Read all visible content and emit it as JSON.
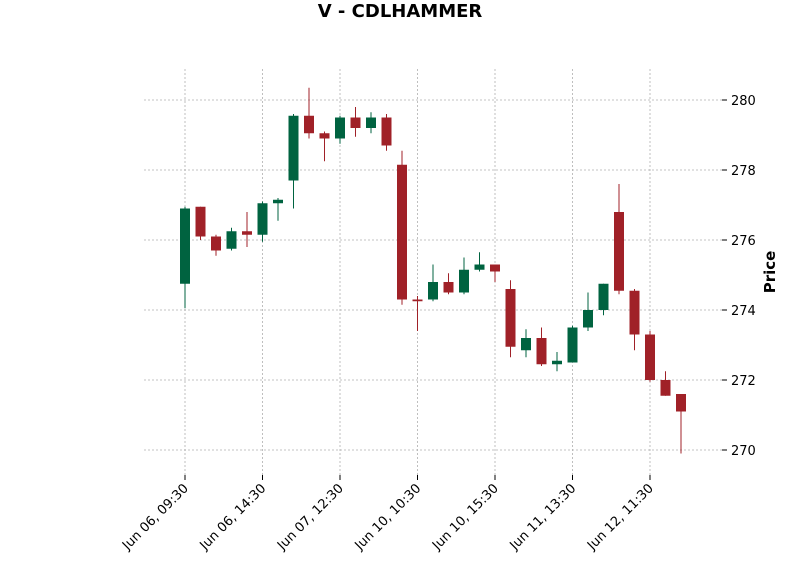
{
  "chart_data": {
    "type": "candlestick",
    "title": "V - CDLHAMMER",
    "ylabel": "Price",
    "xlabel": "",
    "ylim": [
      269.5,
      280.8
    ],
    "yticks": [
      270,
      272,
      274,
      276,
      278,
      280
    ],
    "grid": true,
    "colors": {
      "up": "#006340",
      "down": "#a02128",
      "grid": "#b0b0b0"
    },
    "xtick_labels": [
      {
        "index": 0,
        "label": "Jun 06, 09:30"
      },
      {
        "index": 5,
        "label": "Jun 06, 14:30"
      },
      {
        "index": 10,
        "label": "Jun 07, 12:30"
      },
      {
        "index": 15,
        "label": "Jun 10, 10:30"
      },
      {
        "index": 20,
        "label": "Jun 10, 15:30"
      },
      {
        "index": 25,
        "label": "Jun 11, 13:30"
      },
      {
        "index": 30,
        "label": "Jun 12, 11:30"
      }
    ],
    "candles": [
      {
        "o": 274.75,
        "h": 276.95,
        "l": 274.05,
        "c": 276.9
      },
      {
        "o": 276.95,
        "h": 276.95,
        "l": 276.0,
        "c": 276.1
      },
      {
        "o": 276.1,
        "h": 276.15,
        "l": 275.55,
        "c": 275.7
      },
      {
        "o": 275.75,
        "h": 276.35,
        "l": 275.7,
        "c": 276.25
      },
      {
        "o": 276.25,
        "h": 276.8,
        "l": 275.8,
        "c": 276.15
      },
      {
        "o": 276.15,
        "h": 277.1,
        "l": 275.95,
        "c": 277.05
      },
      {
        "o": 277.05,
        "h": 277.2,
        "l": 276.55,
        "c": 277.15
      },
      {
        "o": 277.7,
        "h": 279.6,
        "l": 276.9,
        "c": 279.55
      },
      {
        "o": 279.55,
        "h": 280.35,
        "l": 278.9,
        "c": 279.05
      },
      {
        "o": 279.05,
        "h": 279.1,
        "l": 278.25,
        "c": 278.9
      },
      {
        "o": 278.9,
        "h": 279.55,
        "l": 278.75,
        "c": 279.5
      },
      {
        "o": 279.5,
        "h": 279.8,
        "l": 278.95,
        "c": 279.2
      },
      {
        "o": 279.2,
        "h": 279.65,
        "l": 279.05,
        "c": 279.5
      },
      {
        "o": 279.5,
        "h": 279.6,
        "l": 278.55,
        "c": 278.7
      },
      {
        "o": 278.15,
        "h": 278.55,
        "l": 274.15,
        "c": 274.3
      },
      {
        "o": 274.3,
        "h": 274.4,
        "l": 273.4,
        "c": 274.25
      },
      {
        "o": 274.3,
        "h": 275.3,
        "l": 274.25,
        "c": 274.8
      },
      {
        "o": 274.8,
        "h": 275.05,
        "l": 274.45,
        "c": 274.5
      },
      {
        "o": 274.5,
        "h": 275.5,
        "l": 274.45,
        "c": 275.15
      },
      {
        "o": 275.15,
        "h": 275.65,
        "l": 275.1,
        "c": 275.3
      },
      {
        "o": 275.3,
        "h": 275.3,
        "l": 274.8,
        "c": 275.1
      },
      {
        "o": 274.6,
        "h": 274.85,
        "l": 272.65,
        "c": 272.95
      },
      {
        "o": 272.85,
        "h": 273.45,
        "l": 272.65,
        "c": 273.2
      },
      {
        "o": 273.2,
        "h": 273.5,
        "l": 272.4,
        "c": 272.45
      },
      {
        "o": 272.45,
        "h": 272.8,
        "l": 272.25,
        "c": 272.55
      },
      {
        "o": 272.5,
        "h": 273.55,
        "l": 272.5,
        "c": 273.5
      },
      {
        "o": 273.5,
        "h": 274.5,
        "l": 273.4,
        "c": 274.0
      },
      {
        "o": 274.0,
        "h": 274.75,
        "l": 273.85,
        "c": 274.75
      },
      {
        "o": 276.8,
        "h": 277.6,
        "l": 274.45,
        "c": 274.55
      },
      {
        "o": 274.55,
        "h": 274.6,
        "l": 272.85,
        "c": 273.3
      },
      {
        "o": 273.3,
        "h": 273.4,
        "l": 271.95,
        "c": 272.0
      },
      {
        "o": 272.0,
        "h": 272.25,
        "l": 271.55,
        "c": 271.55
      },
      {
        "o": 271.6,
        "h": 271.6,
        "l": 269.9,
        "c": 271.1
      }
    ]
  }
}
